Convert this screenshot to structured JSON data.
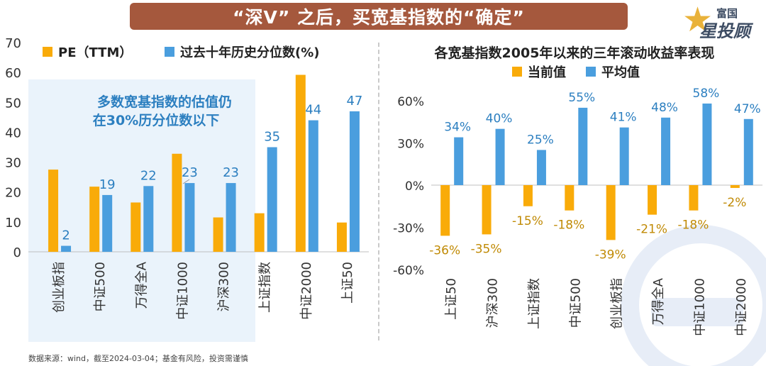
{
  "title": "“深V” 之后，买宽基指数的“确定”",
  "brand": {
    "top": "富国",
    "main": "星投顾"
  },
  "footer": "数据来源：wind，截至2024-03-04；基金有风险，投资需谨慎",
  "colors": {
    "orange": "#f9ab09",
    "blue": "#4a9ede",
    "banner": "#a5583d",
    "annotation": "#2c7fc0",
    "axis_text": "#333333"
  },
  "chart_data": [
    {
      "type": "bar",
      "title": "",
      "annotation": [
        "多数宽基指数的估值仍",
        "在30%历分位数以下"
      ],
      "categories": [
        "创业板指",
        "中证500",
        "万得全A",
        "中证1000",
        "沪深300",
        "上证指数",
        "中证2000",
        "上证50"
      ],
      "series": [
        {
          "name": "PE（TTM）",
          "color": "#f9ab09",
          "values": [
            27.5,
            21.8,
            16.5,
            32.8,
            11.5,
            12.9,
            59.2,
            9.8
          ]
        },
        {
          "name": "过去十年历史分位数(%)",
          "color": "#4a9ede",
          "values": [
            2,
            19,
            22,
            23,
            23,
            35,
            44,
            47
          ]
        }
      ],
      "data_labels": {
        "series": 1,
        "values": [
          "2",
          "19",
          "22",
          "23",
          "23",
          "35",
          "44",
          "47"
        ]
      },
      "yticks": [
        "0",
        "10",
        "20",
        "30",
        "40",
        "50",
        "60",
        "70"
      ],
      "ylim": [
        0,
        70
      ],
      "xlabel": "",
      "ylabel": ""
    },
    {
      "type": "bar",
      "title": "各宽基指数2005年以来的三年滚动收益率表现",
      "categories": [
        "上证50",
        "沪深300",
        "上证指数",
        "中证500",
        "创业板指",
        "万得全A",
        "中证1000",
        "中证2000"
      ],
      "series": [
        {
          "name": "当前值",
          "color": "#f9ab09",
          "values": [
            -36,
            -35,
            -15,
            -18,
            -39,
            -21,
            -18,
            -2
          ]
        },
        {
          "name": "平均值",
          "color": "#4a9ede",
          "values": [
            34,
            40,
            25,
            55,
            41,
            48,
            58,
            47
          ]
        }
      ],
      "data_labels": {
        "current": [
          "-36%",
          "-35%",
          "-15%",
          "-18%",
          "-39%",
          "-21%",
          "-18%",
          "-2%"
        ],
        "average": [
          "34%",
          "40%",
          "25%",
          "55%",
          "41%",
          "48%",
          "58%",
          "47%"
        ]
      },
      "yticks": [
        "-60%",
        "-30%",
        "0%",
        "30%",
        "60%"
      ],
      "ylim": [
        -60,
        60
      ],
      "xlabel": "",
      "ylabel": ""
    }
  ]
}
